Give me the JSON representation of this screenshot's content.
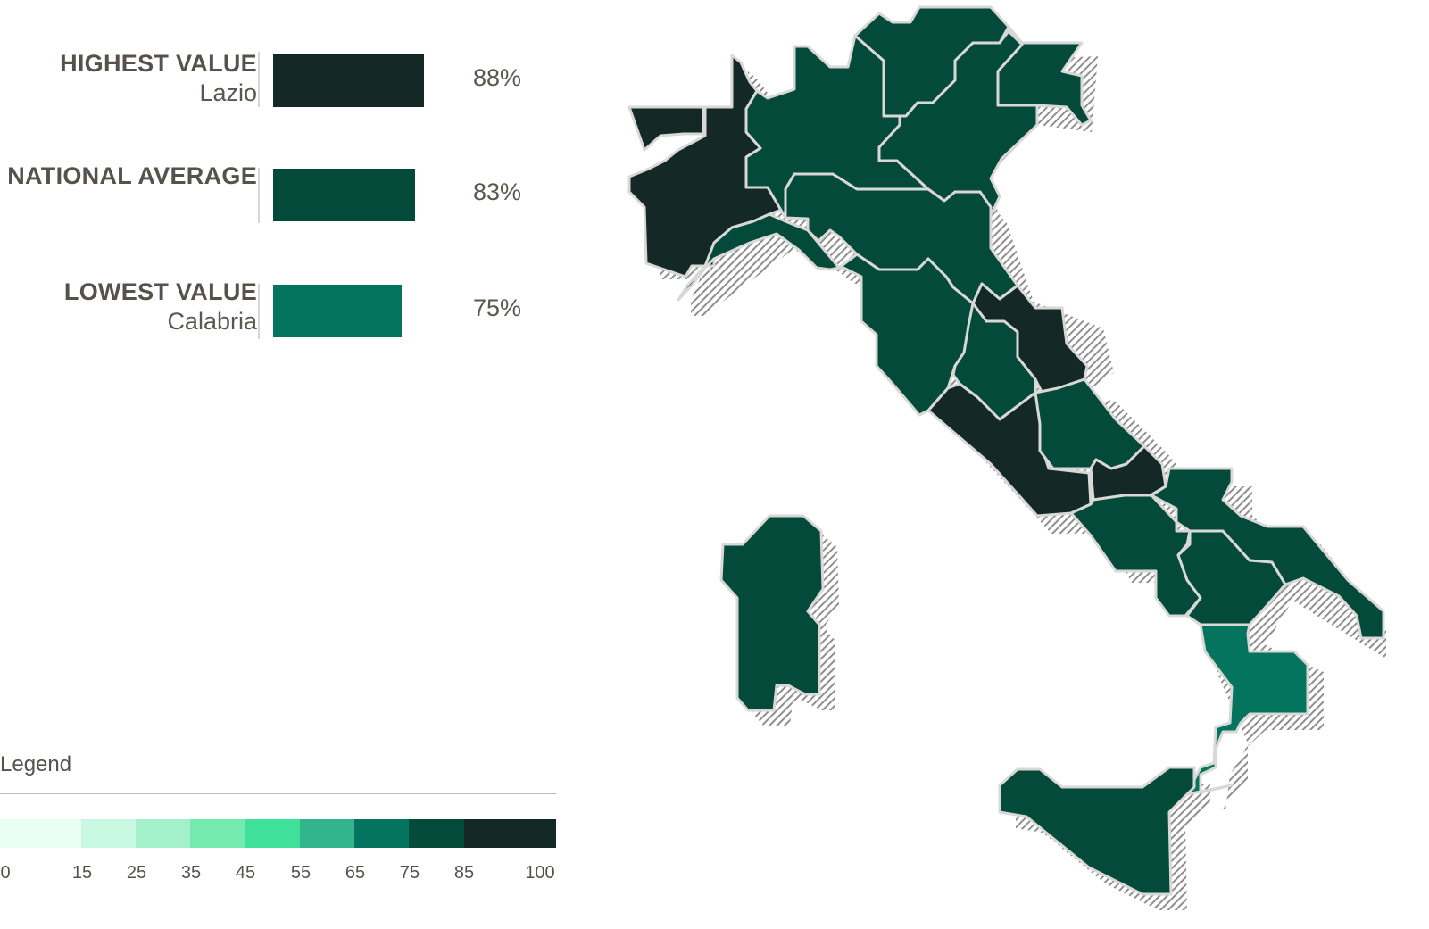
{
  "highlights": [
    {
      "title": "HIGHEST VALUE",
      "subtitle": "Lazio",
      "value": 88,
      "value_label": "88%",
      "color": "#142925"
    },
    {
      "title": "NATIONAL AVERAGE",
      "subtitle": "",
      "value": 83,
      "value_label": "83%",
      "color": "#034a3a"
    },
    {
      "title": "LOWEST VALUE",
      "subtitle": "Calabria",
      "value": 75,
      "value_label": "75%",
      "color": "#04745e"
    }
  ],
  "legend": {
    "title": "Legend",
    "bins": [
      {
        "from": 0,
        "to": 15,
        "color": "#e8fdf3"
      },
      {
        "from": 15,
        "to": 25,
        "color": "#c8f8e1"
      },
      {
        "from": 25,
        "to": 35,
        "color": "#a4f0cb"
      },
      {
        "from": 35,
        "to": 45,
        "color": "#74eab1"
      },
      {
        "from": 45,
        "to": 55,
        "color": "#3ee09a"
      },
      {
        "from": 55,
        "to": 65,
        "color": "#33b48c"
      },
      {
        "from": 65,
        "to": 75,
        "color": "#04745e"
      },
      {
        "from": 75,
        "to": 85,
        "color": "#034a3a"
      },
      {
        "from": 85,
        "to": 100,
        "color": "#142925"
      }
    ],
    "ticks": [
      "0",
      "15",
      "25",
      "35",
      "45",
      "55",
      "65",
      "75",
      "85",
      "100"
    ]
  },
  "map": {
    "regions": [
      {
        "id": "piemonte",
        "color": "#142925"
      },
      {
        "id": "valle-daosta",
        "color": "#142925"
      },
      {
        "id": "lombardia",
        "color": "#034a3a"
      },
      {
        "id": "trentino-alto-adige",
        "color": "#034a3a"
      },
      {
        "id": "veneto",
        "color": "#034a3a"
      },
      {
        "id": "friuli-venezia-giulia",
        "color": "#034a3a"
      },
      {
        "id": "liguria",
        "color": "#034a3a"
      },
      {
        "id": "emilia-romagna",
        "color": "#034a3a"
      },
      {
        "id": "toscana",
        "color": "#034a3a"
      },
      {
        "id": "marche",
        "color": "#142925"
      },
      {
        "id": "umbria",
        "color": "#034a3a"
      },
      {
        "id": "lazio",
        "color": "#142925"
      },
      {
        "id": "abruzzo",
        "color": "#034a3a"
      },
      {
        "id": "molise",
        "color": "#142925"
      },
      {
        "id": "campania",
        "color": "#034a3a"
      },
      {
        "id": "puglia",
        "color": "#034a3a"
      },
      {
        "id": "basilicata",
        "color": "#034a3a"
      },
      {
        "id": "calabria",
        "color": "#04745e"
      },
      {
        "id": "sicilia",
        "color": "#034a3a"
      },
      {
        "id": "sardegna",
        "color": "#034a3a"
      }
    ]
  }
}
